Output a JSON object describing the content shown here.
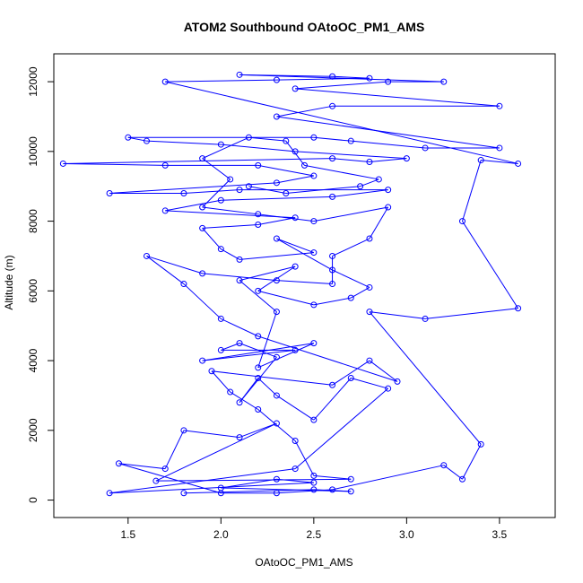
{
  "chart_data": {
    "type": "scatter",
    "title": "ATOM2 Southbound OAtoOC_PM1_AMS",
    "xlabel": "OAtoOC_PM1_AMS",
    "ylabel": "Altitude (m)",
    "xlim": [
      1.1,
      3.8
    ],
    "ylim": [
      -500,
      12800
    ],
    "xticks": [
      1.5,
      2.0,
      2.5,
      3.0,
      3.5
    ],
    "xtick_labels": [
      "1.5",
      "2.0",
      "2.5",
      "3.0",
      "3.5"
    ],
    "yticks": [
      0,
      2000,
      4000,
      6000,
      8000,
      10000,
      12000
    ],
    "ytick_labels": [
      "0",
      "2000",
      "4000",
      "6000",
      "8000",
      "10000",
      "12000"
    ],
    "colors": {
      "series": "#0000ff",
      "axis": "#000000",
      "background": "#ffffff"
    },
    "series": [
      {
        "name": "OAtoOC_PM1_AMS",
        "style": "points+lines",
        "points": [
          [
            1.8,
            200
          ],
          [
            2.5,
            300
          ],
          [
            2.7,
            250
          ],
          [
            2.0,
            350
          ],
          [
            2.3,
            600
          ],
          [
            2.5,
            500
          ],
          [
            1.4,
            200
          ],
          [
            2.4,
            900
          ],
          [
            2.9,
            3200
          ],
          [
            2.7,
            3500
          ],
          [
            2.5,
            2300
          ],
          [
            2.3,
            3000
          ],
          [
            2.2,
            3500
          ],
          [
            2.1,
            2800
          ],
          [
            2.3,
            4100
          ],
          [
            2.1,
            4500
          ],
          [
            2.0,
            4300
          ],
          [
            2.4,
            4300
          ],
          [
            1.9,
            4000
          ],
          [
            2.5,
            4500
          ],
          [
            2.2,
            3800
          ],
          [
            2.3,
            5400
          ],
          [
            2.1,
            6300
          ],
          [
            2.4,
            6700
          ],
          [
            2.2,
            6000
          ],
          [
            2.5,
            5600
          ],
          [
            2.7,
            5800
          ],
          [
            2.8,
            6100
          ],
          [
            2.6,
            6600
          ],
          [
            2.3,
            7500
          ],
          [
            2.5,
            7100
          ],
          [
            2.1,
            6900
          ],
          [
            2.0,
            7200
          ],
          [
            1.9,
            7800
          ],
          [
            2.2,
            7900
          ],
          [
            2.4,
            8100
          ],
          [
            1.7,
            8300
          ],
          [
            2.0,
            8600
          ],
          [
            2.6,
            8700
          ],
          [
            2.9,
            8900
          ],
          [
            2.1,
            8900
          ],
          [
            1.8,
            8800
          ],
          [
            1.4,
            8800
          ],
          [
            2.3,
            9100
          ],
          [
            2.5,
            9300
          ],
          [
            2.2,
            9600
          ],
          [
            1.7,
            9600
          ],
          [
            1.15,
            9650
          ],
          [
            2.6,
            9800
          ],
          [
            2.8,
            9700
          ],
          [
            3.0,
            9800
          ],
          [
            2.4,
            10000
          ],
          [
            2.0,
            10200
          ],
          [
            1.6,
            10300
          ],
          [
            1.5,
            10400
          ],
          [
            2.5,
            10400
          ],
          [
            2.7,
            10300
          ],
          [
            3.1,
            10100
          ],
          [
            3.5,
            10100
          ],
          [
            2.3,
            11000
          ],
          [
            2.6,
            11300
          ],
          [
            3.5,
            11300
          ],
          [
            2.4,
            11800
          ],
          [
            2.9,
            12000
          ],
          [
            3.2,
            12000
          ],
          [
            2.1,
            12200
          ],
          [
            2.6,
            12150
          ],
          [
            2.8,
            12100
          ],
          [
            2.3,
            12050
          ],
          [
            1.7,
            12000
          ],
          [
            3.6,
            9650
          ],
          [
            3.4,
            9750
          ],
          [
            3.3,
            8000
          ],
          [
            3.6,
            5500
          ],
          [
            3.1,
            5200
          ],
          [
            2.8,
            5400
          ],
          [
            3.4,
            1600
          ],
          [
            3.3,
            600
          ],
          [
            3.2,
            1000
          ],
          [
            2.6,
            300
          ],
          [
            2.3,
            200
          ],
          [
            2.0,
            200
          ],
          [
            1.45,
            1050
          ],
          [
            1.7,
            900
          ],
          [
            1.8,
            2000
          ],
          [
            2.1,
            1800
          ],
          [
            2.3,
            2200
          ],
          [
            1.65,
            550
          ],
          [
            2.7,
            600
          ],
          [
            2.5,
            700
          ],
          [
            2.4,
            1700
          ],
          [
            2.2,
            2600
          ],
          [
            2.05,
            3100
          ],
          [
            1.95,
            3700
          ],
          [
            2.6,
            3300
          ],
          [
            2.8,
            4000
          ],
          [
            2.95,
            3400
          ],
          [
            2.2,
            4700
          ],
          [
            2.0,
            5200
          ],
          [
            1.8,
            6200
          ],
          [
            1.6,
            7000
          ],
          [
            1.9,
            6500
          ],
          [
            2.3,
            6300
          ],
          [
            2.6,
            6200
          ],
          [
            2.6,
            7000
          ],
          [
            2.8,
            7500
          ],
          [
            2.9,
            8400
          ],
          [
            2.5,
            8000
          ],
          [
            2.2,
            8200
          ],
          [
            1.9,
            8400
          ],
          [
            2.05,
            9200
          ],
          [
            1.9,
            9800
          ],
          [
            2.15,
            10400
          ],
          [
            2.35,
            10300
          ],
          [
            2.45,
            9600
          ],
          [
            2.85,
            9200
          ],
          [
            2.75,
            9000
          ],
          [
            2.35,
            8800
          ],
          [
            2.15,
            9000
          ]
        ]
      }
    ]
  }
}
